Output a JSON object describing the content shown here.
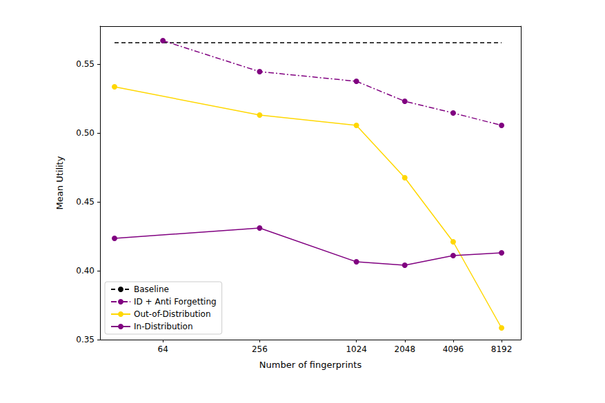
{
  "chart_data": {
    "type": "line",
    "x_label": "Number of fingerprints",
    "y_label": "Mean Utility",
    "log": "x",
    "grid": false,
    "legend": "lower left",
    "xlim": [
      26,
      10800
    ],
    "xticks": [
      64,
      256,
      1024,
      2048,
      4096,
      8192
    ],
    "ylim": [
      0.35,
      0.5775
    ],
    "yticks": [
      {
        "value": 0.35,
        "label": "0.35"
      },
      {
        "value": 0.4,
        "label": "0.40"
      },
      {
        "value": 0.45,
        "label": "0.45"
      },
      {
        "value": 0.5,
        "label": "0.50"
      },
      {
        "value": 0.55,
        "label": "0.55"
      }
    ],
    "series": [
      {
        "name": "Baseline",
        "color": "#000000",
        "line_style": "dashed",
        "marker": "none",
        "x": [
          32,
          8192
        ],
        "values": [
          0.5655,
          0.5655
        ]
      },
      {
        "name": "ID + Anti Forgetting",
        "color": "#800080",
        "line_style": "dashdot",
        "marker": "o",
        "x": [
          64,
          256,
          1024,
          2048,
          4096,
          8192
        ],
        "values": [
          0.567,
          0.5445,
          0.5375,
          0.523,
          0.5145,
          0.5055
        ]
      },
      {
        "name": "Out-of-Distribution",
        "color": "#ffd700",
        "line_style": "solid",
        "marker": "o",
        "x": [
          32,
          256,
          1024,
          2048,
          4096,
          8192
        ],
        "values": [
          0.5335,
          0.513,
          0.5055,
          0.4675,
          0.421,
          0.3585
        ]
      },
      {
        "name": "In-Distribution",
        "color": "#800080",
        "line_style": "solid",
        "marker": "o",
        "x": [
          32,
          256,
          1024,
          2048,
          4096,
          8192
        ],
        "values": [
          0.4235,
          0.431,
          0.4065,
          0.404,
          0.411,
          0.413
        ]
      }
    ]
  }
}
